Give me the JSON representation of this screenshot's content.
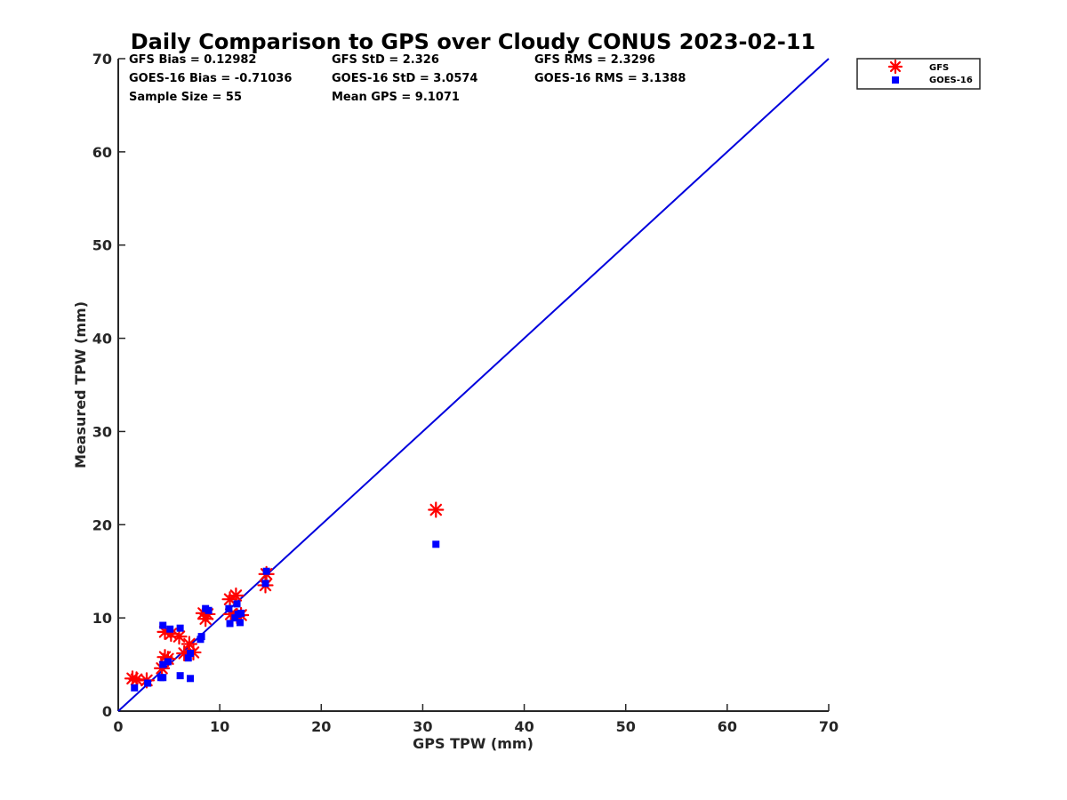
{
  "chart_data": {
    "type": "scatter",
    "title": "Daily Comparison to GPS over Cloudy CONUS 2023-02-11",
    "xlabel": "GPS TPW (mm)",
    "ylabel": "Measured TPW (mm)",
    "xlim": [
      0,
      70
    ],
    "ylim": [
      0,
      70
    ],
    "xticks": [
      "0",
      "10",
      "20",
      "30",
      "40",
      "50",
      "60",
      "70"
    ],
    "yticks": [
      "0",
      "10",
      "20",
      "30",
      "40",
      "50",
      "60",
      "70"
    ],
    "grid": false,
    "legend_position": "outside top-right",
    "stats": {
      "gfs_bias": "GFS Bias = 0.12982",
      "gfs_std": "GFS StD = 2.326",
      "gfs_rms": "GFS RMS = 2.3296",
      "goes_bias": "GOES-16 Bias = -0.71036",
      "goes_std": "GOES-16 StD = 3.0574",
      "goes_rms": "GOES-16 RMS = 3.1388",
      "sample_size": "Sample Size = 55",
      "mean_gps": "Mean GPS = 9.1071"
    },
    "reference_line": {
      "x": [
        0,
        70
      ],
      "y": [
        0,
        70
      ],
      "color": "#0000dd"
    },
    "series": [
      {
        "name": "GFS",
        "marker": "asterisk",
        "color": "#ff0000",
        "points": [
          [
            1.4,
            3.5
          ],
          [
            1.8,
            3.4
          ],
          [
            2.8,
            3.3
          ],
          [
            4.3,
            4.6
          ],
          [
            4.6,
            5.8
          ],
          [
            4.9,
            5.6
          ],
          [
            4.6,
            8.5
          ],
          [
            5.2,
            8.3
          ],
          [
            6.0,
            8.0
          ],
          [
            6.5,
            6.2
          ],
          [
            7.0,
            7.2
          ],
          [
            7.4,
            6.3
          ],
          [
            8.4,
            10.5
          ],
          [
            8.6,
            9.9
          ],
          [
            8.8,
            10.4
          ],
          [
            11.0,
            12.0
          ],
          [
            11.1,
            10.4
          ],
          [
            11.6,
            12.4
          ],
          [
            11.7,
            10.2
          ],
          [
            12.1,
            10.3
          ],
          [
            14.5,
            13.5
          ],
          [
            14.6,
            14.7
          ],
          [
            31.3,
            21.6
          ]
        ]
      },
      {
        "name": "GOES-16",
        "marker": "square",
        "color": "#0000ff",
        "points": [
          [
            1.6,
            2.5
          ],
          [
            2.9,
            3.0
          ],
          [
            4.2,
            3.6
          ],
          [
            4.4,
            3.6
          ],
          [
            4.4,
            5.0
          ],
          [
            4.4,
            9.2
          ],
          [
            4.9,
            5.3
          ],
          [
            5.1,
            8.8
          ],
          [
            6.1,
            8.9
          ],
          [
            6.1,
            3.8
          ],
          [
            6.9,
            5.7
          ],
          [
            7.1,
            3.5
          ],
          [
            7.1,
            6.2
          ],
          [
            8.1,
            7.7
          ],
          [
            8.2,
            8.0
          ],
          [
            8.6,
            11.0
          ],
          [
            8.9,
            10.8
          ],
          [
            10.9,
            11.0
          ],
          [
            11.0,
            9.4
          ],
          [
            11.5,
            10.0
          ],
          [
            11.7,
            11.5
          ],
          [
            11.8,
            10.4
          ],
          [
            12.0,
            9.5
          ],
          [
            12.1,
            10.5
          ],
          [
            14.5,
            13.7
          ],
          [
            14.6,
            15.0
          ],
          [
            31.3,
            17.9
          ]
        ]
      }
    ]
  }
}
